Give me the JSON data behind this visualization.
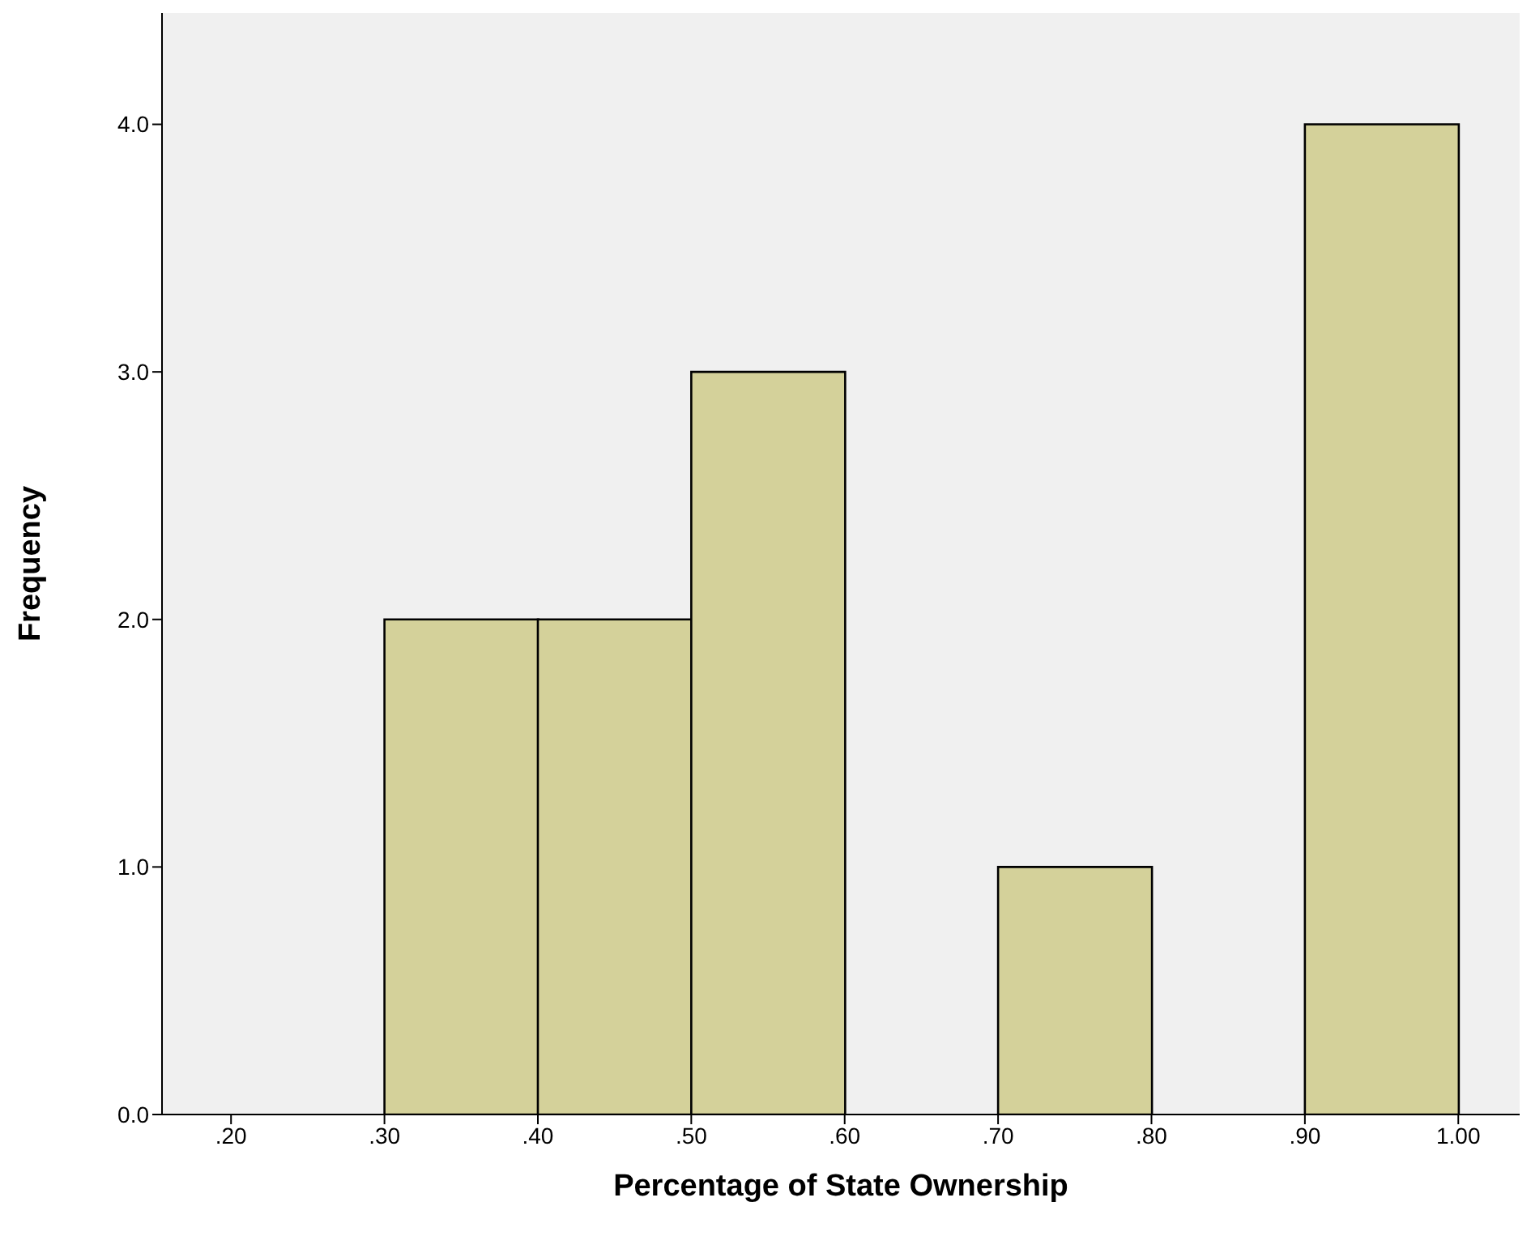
{
  "chart_data": {
    "type": "histogram",
    "xlabel": "Percentage of State Ownership",
    "ylabel": "Frequency",
    "bins": [
      0.3,
      0.4,
      0.5,
      0.6,
      0.7,
      0.8,
      0.9,
      1.0
    ],
    "values": [
      2,
      2,
      3,
      0,
      1,
      0,
      4
    ],
    "color": "#d4d19a",
    "xlim": [
      0.155,
      1.04
    ],
    "xticks": [
      {
        "value": 0.2,
        "label": ".20"
      },
      {
        "value": 0.3,
        "label": ".30"
      },
      {
        "value": 0.4,
        "label": ".40"
      },
      {
        "value": 0.5,
        "label": ".50"
      },
      {
        "value": 0.6,
        "label": ".60"
      },
      {
        "value": 0.7,
        "label": ".70"
      },
      {
        "value": 0.8,
        "label": ".80"
      },
      {
        "value": 0.9,
        "label": ".90"
      },
      {
        "value": 1.0,
        "label": "1.00"
      }
    ],
    "ylim": [
      0,
      4.45
    ],
    "yticks": [
      {
        "value": 0,
        "label": "0.0"
      },
      {
        "value": 1,
        "label": "1.0"
      },
      {
        "value": 2,
        "label": "2.0"
      },
      {
        "value": 3,
        "label": "3.0"
      },
      {
        "value": 4,
        "label": "4.0"
      }
    ],
    "grid": false
  }
}
